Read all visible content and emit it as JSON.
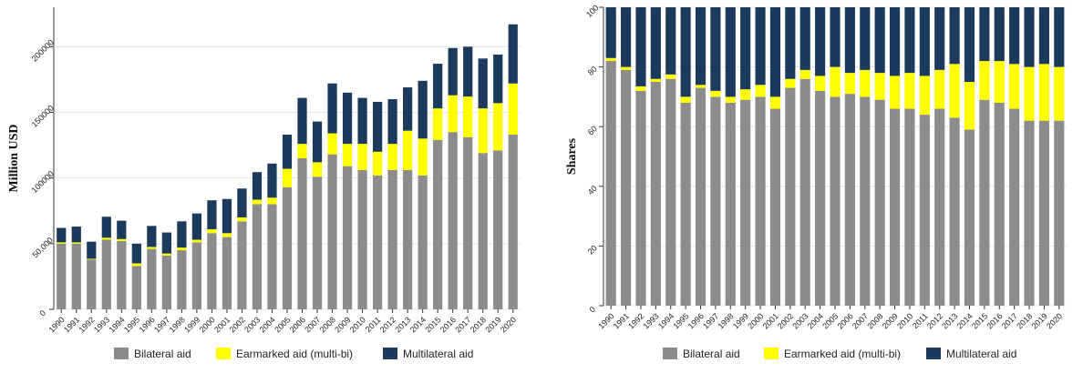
{
  "chart_data": [
    {
      "type": "bar",
      "stacked": true,
      "title": "",
      "xlabel": "",
      "ylabel": "Million USD",
      "ylim": [
        0,
        230000
      ],
      "yticks": [
        0,
        50000,
        100000,
        150000,
        200000
      ],
      "ytick_labels": [
        "0",
        "50,000",
        "100000",
        "150000",
        "200000"
      ],
      "categories": [
        "1990",
        "1991",
        "1992",
        "1993",
        "1994",
        "1995",
        "1996",
        "1997",
        "1998",
        "1999",
        "2000",
        "2001",
        "2002",
        "2003",
        "2004",
        "2005",
        "2006",
        "2007",
        "2008",
        "2009",
        "2010",
        "2011",
        "2012",
        "2013",
        "2014",
        "2015",
        "2016",
        "2017",
        "2018",
        "2019",
        "2020"
      ],
      "series": [
        {
          "name": "Bilateral aid",
          "color": "#8c8c8c",
          "values": [
            50000,
            50000,
            38000,
            53000,
            52000,
            33000,
            46000,
            41000,
            45000,
            51000,
            58000,
            55000,
            67000,
            80000,
            80000,
            93000,
            115000,
            101000,
            118000,
            109000,
            106000,
            102000,
            106000,
            106000,
            102000,
            129000,
            135000,
            131000,
            119000,
            121000,
            133000
          ]
        },
        {
          "name": "Earmarked aid (multi-bi)",
          "color": "#ffff00",
          "values": [
            1000,
            1000,
            500,
            1500,
            1500,
            2000,
            1500,
            1500,
            2000,
            2000,
            3000,
            3000,
            3000,
            3500,
            5000,
            14000,
            11000,
            11000,
            16000,
            17000,
            20000,
            18000,
            20000,
            30000,
            28000,
            24000,
            28000,
            31000,
            34000,
            36000,
            39000
          ]
        },
        {
          "name": "Multilateral aid",
          "color": "#1b3a5c",
          "values": [
            11000,
            12000,
            13000,
            16000,
            14000,
            15000,
            16000,
            16000,
            20000,
            20000,
            22000,
            26000,
            22000,
            21000,
            26000,
            26000,
            35000,
            31000,
            38000,
            39000,
            35000,
            38000,
            34000,
            33000,
            44000,
            34000,
            36000,
            38000,
            38000,
            37000,
            45000
          ]
        }
      ],
      "legend": "bottom"
    },
    {
      "type": "bar",
      "stacked": true,
      "title": "",
      "xlabel": "",
      "ylabel": "Shares",
      "ylim": [
        0,
        100
      ],
      "yticks": [
        0,
        20,
        40,
        60,
        80,
        100
      ],
      "ytick_labels": [
        "0",
        "20",
        "40",
        "60",
        "80",
        "100"
      ],
      "categories": [
        "1990",
        "1991",
        "1992",
        "1993",
        "1994",
        "1995",
        "1996",
        "1997",
        "1998",
        "1999",
        "2000",
        "2001",
        "2002",
        "2003",
        "2004",
        "2005",
        "2006",
        "2007",
        "2008",
        "2009",
        "2010",
        "2011",
        "2012",
        "2013",
        "2014",
        "2015",
        "2016",
        "2017",
        "2018",
        "2019",
        "2020"
      ],
      "series": [
        {
          "name": "Bilateral aid",
          "color": "#8c8c8c",
          "values": [
            82,
            79,
            72,
            75,
            76,
            68,
            73,
            70,
            68,
            69,
            70,
            66,
            73,
            76,
            72,
            70,
            71,
            70,
            69,
            66,
            66,
            64,
            66,
            63,
            59,
            69,
            68,
            66,
            62,
            62,
            62
          ]
        },
        {
          "name": "Earmarked aid (multi-bi)",
          "color": "#ffff00",
          "values": [
            1,
            1,
            1.5,
            1,
            1.5,
            2,
            1,
            2,
            2,
            3.5,
            4,
            4,
            3,
            3,
            5,
            10,
            7,
            9,
            9,
            11,
            12,
            13,
            13,
            18,
            16,
            13,
            14,
            15,
            18,
            19,
            18
          ]
        },
        {
          "name": "Multilateral aid",
          "color": "#1b3a5c",
          "values": [
            17,
            20,
            26.5,
            24,
            22.5,
            30,
            26,
            28,
            30,
            27.5,
            26,
            30,
            24,
            21,
            23,
            20,
            22,
            21,
            22,
            23,
            22,
            23,
            21,
            19,
            25,
            18,
            18,
            19,
            20,
            19,
            20
          ]
        }
      ],
      "legend": "bottom"
    }
  ]
}
